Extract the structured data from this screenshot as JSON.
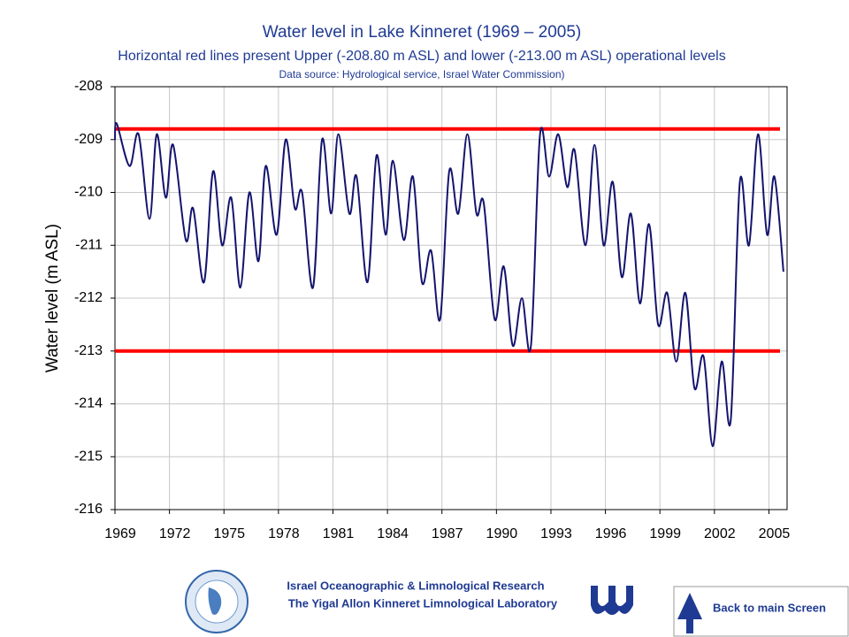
{
  "chart_data": {
    "type": "line",
    "title": "Water level in Lake Kinneret (1969 – 2005)",
    "subtitle": "Horizontal red lines present Upper (-208.80 m ASL) and lower (-213.00 m ASL) operational levels",
    "source": "Data source: Hydrological service, Israel Water Commission)",
    "y_label": "Water level (m ASL)",
    "xlim": [
      1969,
      2006
    ],
    "xticks": [
      1969,
      1972,
      1975,
      1978,
      1981,
      1984,
      1987,
      1990,
      1993,
      1996,
      1999,
      2002,
      2005
    ],
    "ylim": [
      -216,
      -208
    ],
    "yticks": [
      -216,
      -215,
      -214,
      -213,
      -212,
      -211,
      -210,
      -209,
      -208
    ],
    "grid": true,
    "hlines": [
      {
        "value": -208.8,
        "color": "#ff0000"
      },
      {
        "value": -213.0,
        "color": "#ff0000"
      }
    ],
    "x": [
      1969.0,
      1969.1,
      1969.8,
      1970.3,
      1970.9,
      1971.3,
      1971.8,
      1972.2,
      1972.9,
      1973.3,
      1973.9,
      1974.4,
      1974.9,
      1975.4,
      1975.9,
      1976.4,
      1976.9,
      1977.3,
      1977.9,
      1978.4,
      1978.9,
      1979.3,
      1979.9,
      1980.4,
      1980.9,
      1981.3,
      1981.9,
      1982.3,
      1982.9,
      1983.4,
      1983.9,
      1984.3,
      1984.9,
      1985.4,
      1985.9,
      1986.4,
      1986.9,
      1987.4,
      1987.9,
      1988.4,
      1988.9,
      1989.3,
      1989.9,
      1990.4,
      1990.9,
      1991.4,
      1991.9,
      1992.4,
      1992.9,
      1993.4,
      1993.9,
      1994.3,
      1994.9,
      1995.4,
      1995.9,
      1996.4,
      1996.9,
      1997.4,
      1997.9,
      1998.4,
      1998.9,
      1999.4,
      1999.9,
      2000.4,
      2000.9,
      2001.4,
      2001.9,
      2002.4,
      2002.9,
      2003.4,
      2003.9,
      2004.4,
      2004.9,
      2005.3,
      2005.8
    ],
    "series": [
      {
        "name": "Water level",
        "color": "#14146e",
        "values": [
          -209.0,
          -208.7,
          -209.5,
          -208.9,
          -210.5,
          -208.9,
          -210.1,
          -209.1,
          -210.9,
          -210.3,
          -211.7,
          -209.6,
          -211.0,
          -210.1,
          -211.8,
          -210.0,
          -211.3,
          -209.5,
          -210.8,
          -209.0,
          -210.3,
          -210.0,
          -211.8,
          -209.0,
          -210.4,
          -208.9,
          -210.4,
          -209.7,
          -211.7,
          -209.3,
          -210.8,
          -209.4,
          -210.9,
          -209.7,
          -211.7,
          -211.1,
          -212.4,
          -209.6,
          -210.4,
          -208.9,
          -210.4,
          -210.2,
          -212.4,
          -211.4,
          -212.9,
          -212.0,
          -212.9,
          -208.9,
          -209.7,
          -208.9,
          -209.9,
          -209.2,
          -211.0,
          -209.1,
          -211.0,
          -209.8,
          -211.6,
          -210.4,
          -212.1,
          -210.6,
          -212.5,
          -211.9,
          -213.2,
          -211.9,
          -213.7,
          -213.1,
          -214.8,
          -213.2,
          -214.3,
          -209.8,
          -211.0,
          -208.9,
          -210.8,
          -209.7,
          -211.5
        ]
      }
    ]
  },
  "footer": {
    "line1": "Israel Oceanographic & Limnological Research",
    "line2": "The Yigal Allon Kinneret Limnological Laboratory"
  },
  "button": {
    "label": "Back to main Screen"
  }
}
